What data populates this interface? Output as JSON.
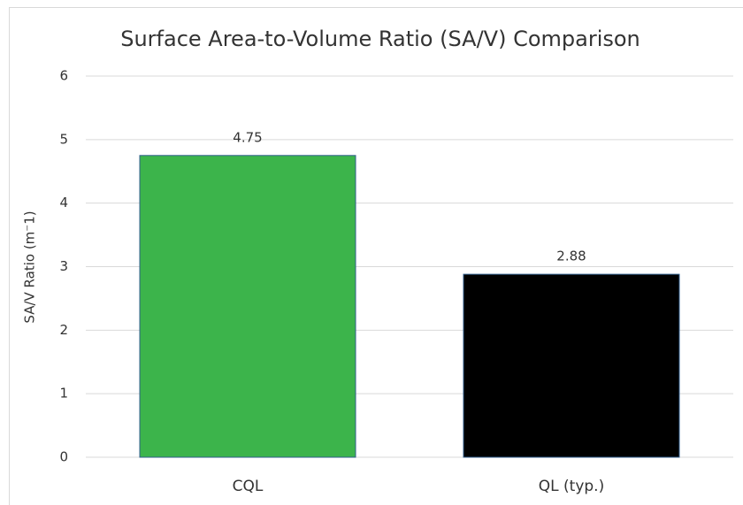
{
  "chart_data": {
    "type": "bar",
    "title": "Surface Area-to-Volume Ratio (SA/V) Comparison",
    "y_label": "SA/V Ratio (m⁻1)",
    "categories": [
      "CQL",
      "QL (typ.)"
    ],
    "values": [
      4.75,
      2.88
    ],
    "colors": [
      "#3cb44b",
      "#000000"
    ],
    "ylim": [
      0,
      6
    ],
    "yticks": [
      0,
      1,
      2,
      3,
      4,
      5,
      6
    ],
    "grid": true
  }
}
